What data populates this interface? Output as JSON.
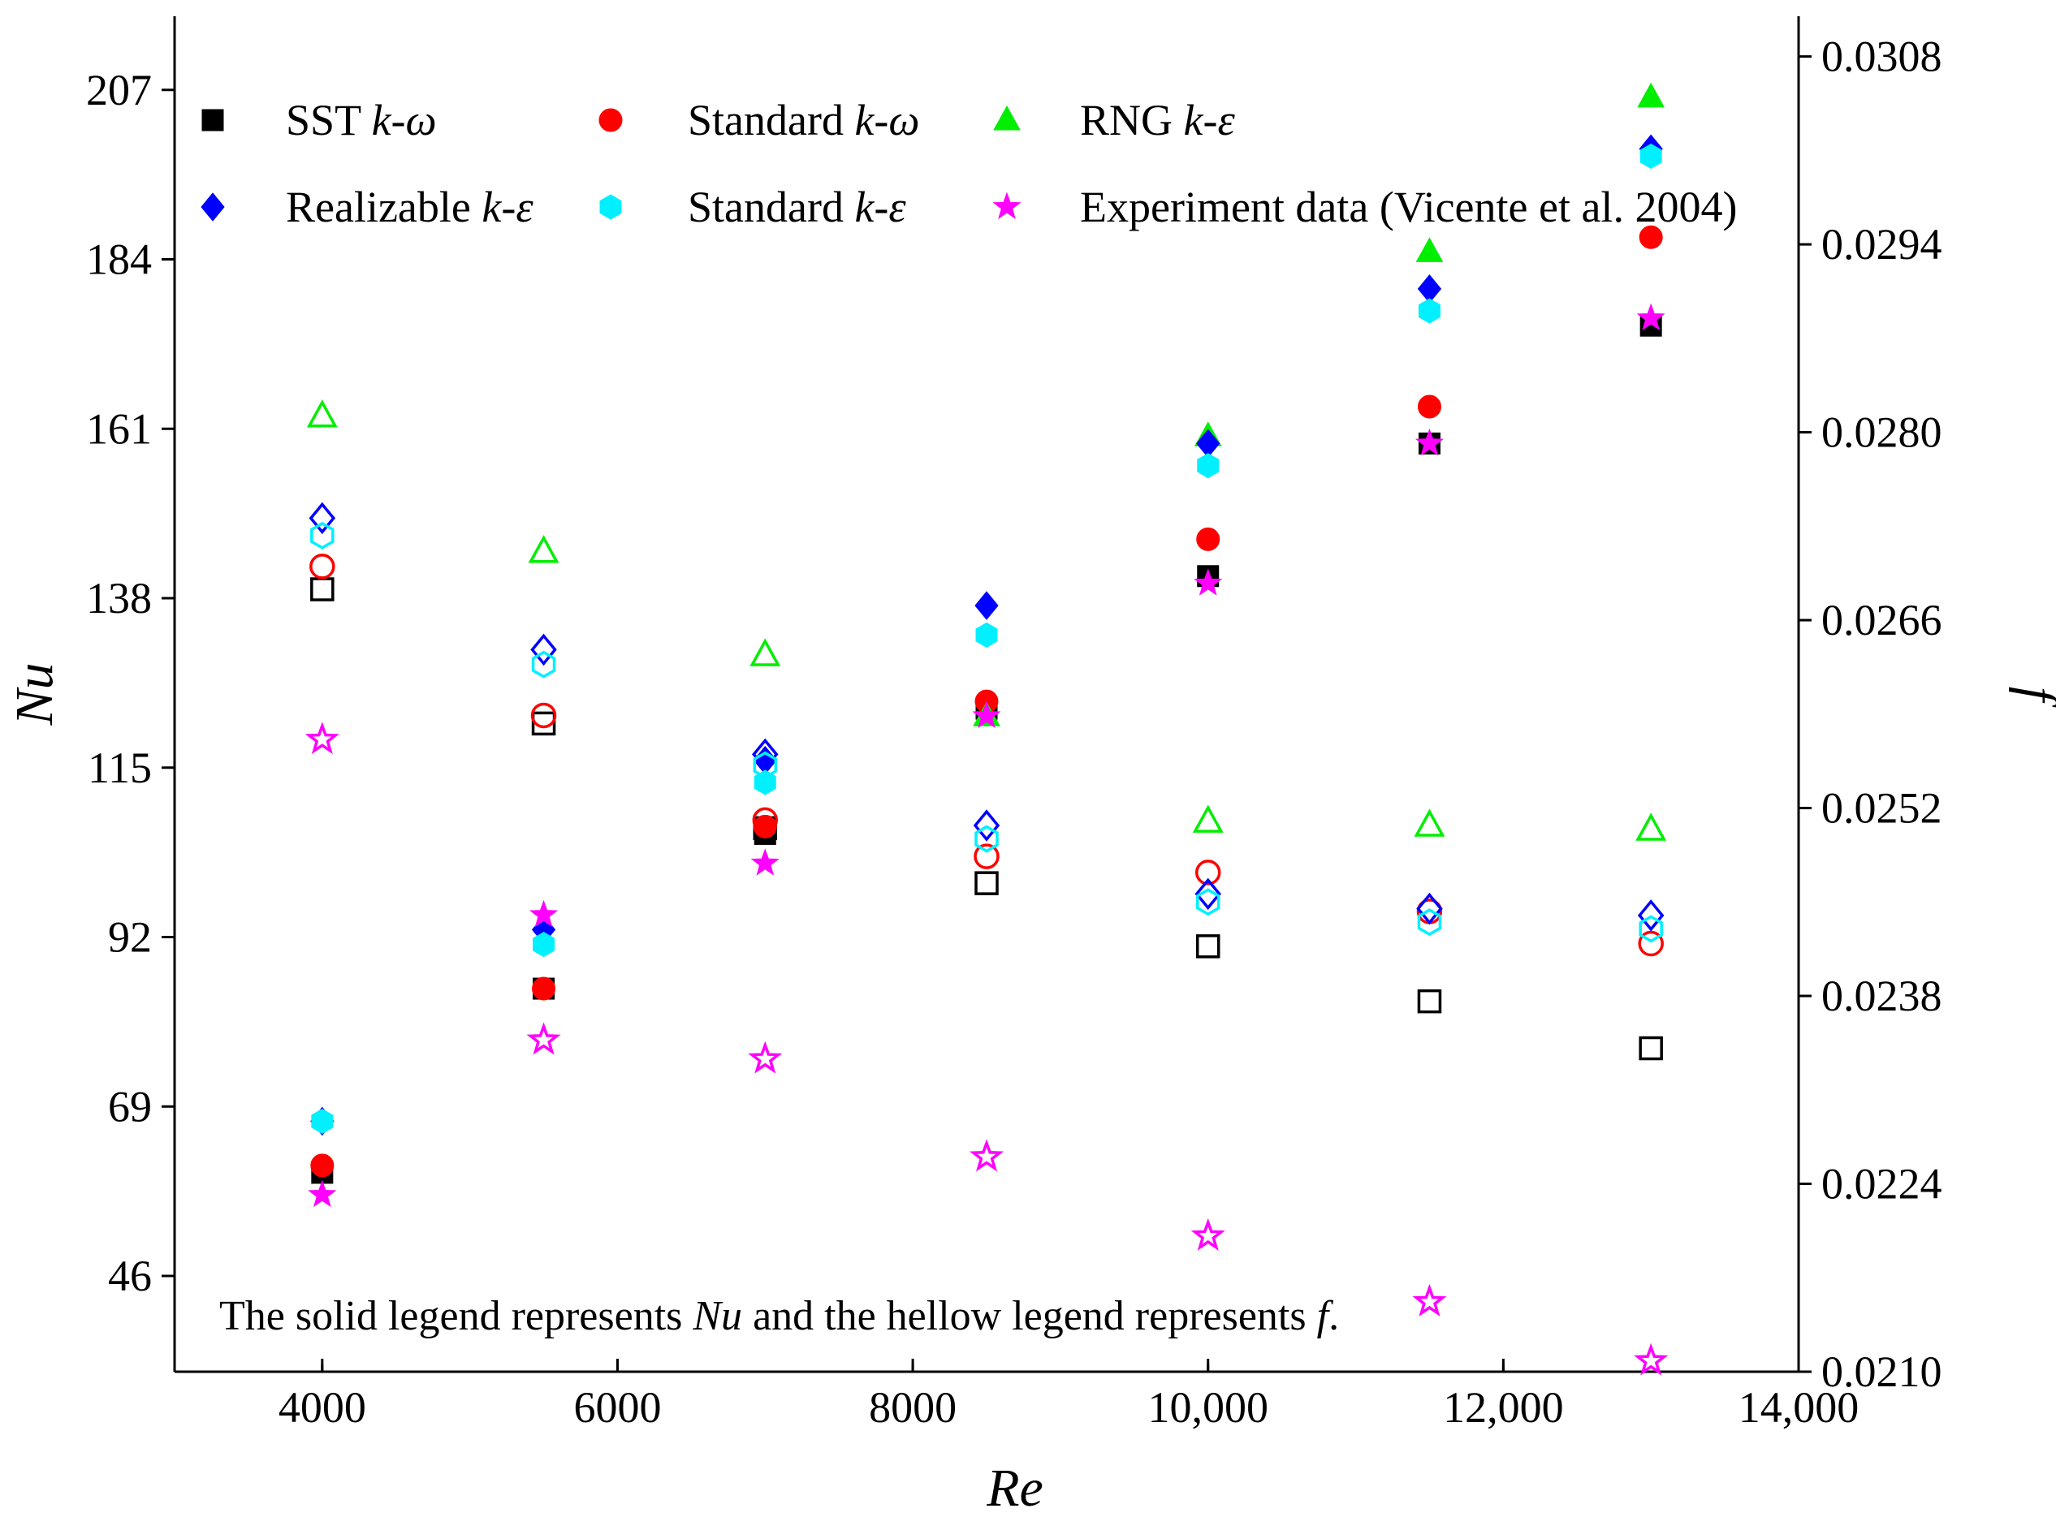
{
  "chart_data": {
    "type": "scatter",
    "title": "",
    "xlabel": "Re",
    "ylabel": "Nu",
    "y2label": "f",
    "xlim": [
      3000,
      14000
    ],
    "ylim": [
      33,
      217
    ],
    "y2lim": [
      0.021,
      0.0311
    ],
    "x_ticks": [
      4000,
      6000,
      8000,
      10000,
      12000,
      14000
    ],
    "x_tick_labels": [
      "4000",
      "6000",
      "8000",
      "10,000",
      "12,000",
      "14,000"
    ],
    "y_ticks": [
      46,
      69,
      92,
      115,
      138,
      161,
      184,
      207
    ],
    "y_tick_labels": [
      "46",
      "69",
      "92",
      "115",
      "138",
      "161",
      "184",
      "207"
    ],
    "y2_ticks": [
      0.021,
      0.0224,
      0.0238,
      0.0252,
      0.0266,
      0.028,
      0.0294,
      0.0308
    ],
    "y2_tick_labels": [
      "0.0210",
      "0.0224",
      "0.0238",
      "0.0252",
      "0.0266",
      "0.0280",
      "0.0294",
      "0.0308"
    ],
    "x": [
      4000,
      5500,
      7000,
      8500,
      10000,
      11500,
      13000
    ],
    "series": [
      {
        "name": "SST k-ω",
        "base": "SST ",
        "ital": "k-ω",
        "color": "#000000",
        "marker": "square",
        "nu": [
          60,
          85,
          106,
          123,
          141,
          159,
          175
        ],
        "f": [
          0.02683,
          0.02583,
          0.02505,
          0.02464,
          0.02417,
          0.02376,
          0.02341
        ]
      },
      {
        "name": "Standard k-ω",
        "base": "Standard ",
        "ital": "k-ω",
        "color": "#ff0000",
        "marker": "circle",
        "nu": [
          61,
          85,
          107,
          124,
          146,
          164,
          187
        ],
        "f": [
          0.027,
          0.02589,
          0.02511,
          0.02484,
          0.02472,
          0.02443,
          0.02419
        ]
      },
      {
        "name": "RNG k-ε",
        "base": "RNG ",
        "ital": "k-ε",
        "color": "#00ee00",
        "marker": "triangle",
        "nu": null,
        "nu_points": [
          [
            8500,
            122
          ],
          [
            10000,
            160
          ],
          [
            11500,
            185
          ],
          [
            13000,
            206
          ]
        ],
        "f": [
          0.02812,
          0.02711,
          0.02634,
          null,
          0.0251,
          0.02507,
          0.02504
        ]
      },
      {
        "name": "Realizable k-ε",
        "base": "Realizable ",
        "ital": "k-ε",
        "color": "#0000ff",
        "marker": "diamond",
        "nu": [
          67,
          93,
          116,
          137,
          159,
          180,
          199
        ],
        "f": [
          0.02736,
          0.02638,
          0.0256,
          0.02507,
          0.02456,
          0.02445,
          0.0244
        ]
      },
      {
        "name": "Standard k-ε",
        "base": "Standard ",
        "ital": "k-ε",
        "color": "#00f0ff",
        "marker": "hexagon",
        "nu": [
          67,
          91,
          113,
          133,
          156,
          177,
          198
        ],
        "f": [
          0.02723,
          0.02627,
          0.02552,
          0.02497,
          0.0245,
          0.02435,
          0.0243
        ]
      },
      {
        "name": "Experiment data (Vicente et al. 2004)",
        "base": "Experiment data (Vicente et al. 2004)",
        "ital": "",
        "color": "#ff00ff",
        "marker": "star",
        "nu": [
          57,
          95,
          102,
          122,
          140,
          159,
          176
        ],
        "f": [
          0.02571,
          0.02347,
          0.02333,
          0.0226,
          0.02201,
          0.02152,
          0.02108
        ]
      }
    ],
    "legend_position": "top",
    "annotation_parts": [
      "The solid legend represents ",
      "Nu",
      " and the hellow legend represents ",
      "f",
      "."
    ]
  }
}
